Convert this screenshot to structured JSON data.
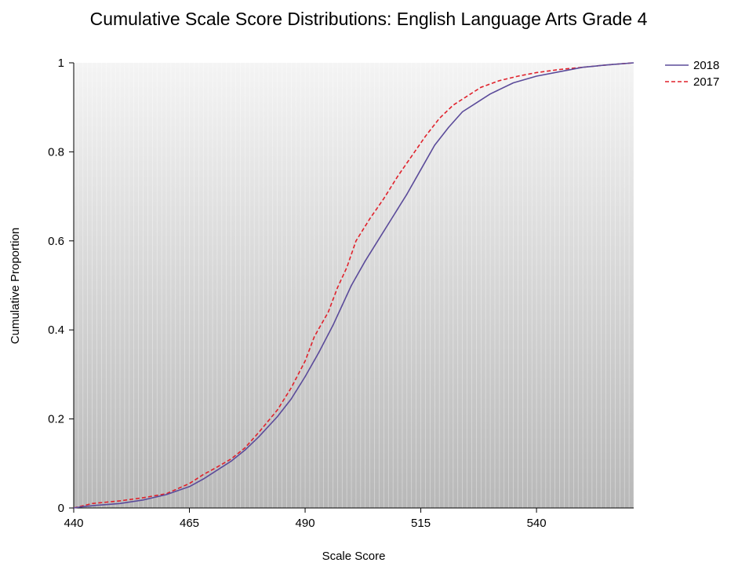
{
  "chart_data": {
    "type": "line",
    "title": "Cumulative Scale Score Distributions: English Language Arts Grade 4",
    "xlabel": "Scale Score",
    "ylabel": "Cumulative Proportion",
    "xlim": [
      440,
      561
    ],
    "ylim": [
      0,
      1
    ],
    "x_ticks": [
      440,
      465,
      490,
      515,
      540
    ],
    "y_ticks": [
      0,
      0.2,
      0.4,
      0.6,
      0.8,
      1
    ],
    "y_tick_labels": [
      "0",
      "0.2",
      "0.4",
      "0.6",
      "0.8",
      "1"
    ],
    "x_tick_labels": [
      "440",
      "465",
      "490",
      "515",
      "540"
    ],
    "legend_position": "top-right",
    "grid": "dense vertical lines",
    "background": "gradient light gray to dark gray",
    "series": [
      {
        "name": "2018",
        "color": "#5b4b9a",
        "style": "solid",
        "x": [
          440,
          442,
          445,
          450,
          455,
          460,
          465,
          468,
          471,
          474,
          477,
          480,
          484,
          487,
          490,
          493,
          496,
          498,
          500,
          503,
          506,
          509,
          512,
          515,
          518,
          521,
          524,
          527,
          530,
          535,
          540,
          545,
          550,
          555,
          561
        ],
        "y": [
          0.0,
          0.003,
          0.006,
          0.01,
          0.018,
          0.03,
          0.048,
          0.065,
          0.085,
          0.105,
          0.13,
          0.16,
          0.205,
          0.245,
          0.295,
          0.35,
          0.41,
          0.455,
          0.5,
          0.555,
          0.605,
          0.655,
          0.705,
          0.76,
          0.815,
          0.855,
          0.89,
          0.91,
          0.93,
          0.955,
          0.97,
          0.98,
          0.99,
          0.995,
          1.0
        ]
      },
      {
        "name": "2017",
        "color": "#e0212b",
        "style": "dashed",
        "x": [
          440,
          442,
          444,
          447,
          450,
          455,
          460,
          465,
          468,
          471,
          474,
          477,
          480,
          484,
          487,
          490,
          492,
          495,
          497,
          499,
          501,
          504,
          507,
          510,
          513,
          516,
          519,
          522,
          525,
          528,
          532,
          536,
          540,
          545,
          550,
          555,
          561
        ],
        "y": [
          0.0,
          0.005,
          0.01,
          0.013,
          0.016,
          0.023,
          0.032,
          0.055,
          0.075,
          0.092,
          0.11,
          0.135,
          0.17,
          0.22,
          0.27,
          0.33,
          0.385,
          0.44,
          0.495,
          0.54,
          0.6,
          0.65,
          0.695,
          0.745,
          0.79,
          0.835,
          0.875,
          0.905,
          0.925,
          0.945,
          0.96,
          0.97,
          0.978,
          0.985,
          0.99,
          0.995,
          1.0
        ]
      }
    ]
  }
}
